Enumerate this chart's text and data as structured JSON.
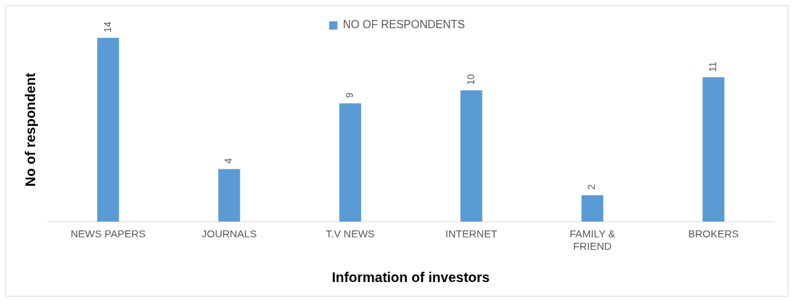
{
  "chart_data": {
    "type": "bar",
    "xlabel": "Information of investors",
    "ylabel": "No of respondent",
    "categories": [
      "NEWS PAPERS",
      "JOURNALS",
      "T.V NEWS",
      "INTERNET",
      "FAMILY & FRIEND",
      "BROKERS"
    ],
    "series": [
      {
        "name": "NO OF RESPONDENTS",
        "color": "#5b9bd5",
        "values": [
          14,
          4,
          9,
          10,
          2,
          11
        ]
      }
    ],
    "data_labels": true,
    "legend": "top",
    "grid": false,
    "tick_labels": "x"
  }
}
